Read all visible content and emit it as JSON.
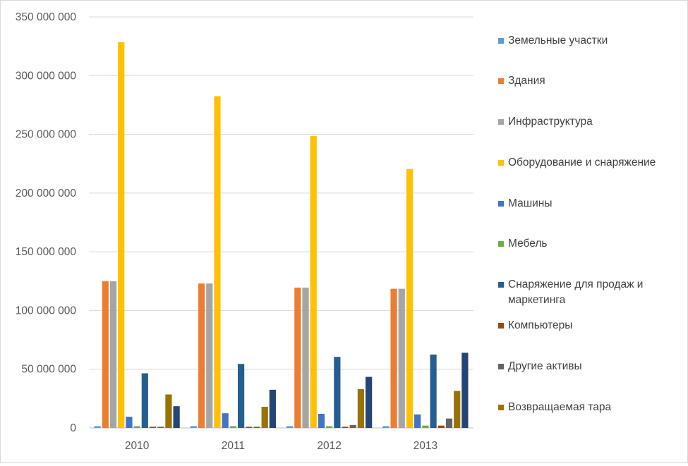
{
  "chart_data": {
    "type": "bar",
    "categories": [
      "2010",
      "2011",
      "2012",
      "2013"
    ],
    "ylim": [
      0,
      350000000
    ],
    "yticks": [
      0,
      50000000,
      100000000,
      150000000,
      200000000,
      250000000,
      300000000,
      350000000
    ],
    "ytick_labels": [
      "0",
      "50 000 000",
      "100 000 000",
      "150 000 000",
      "200 000 000",
      "250 000 000",
      "300 000 000",
      "350 000 000"
    ],
    "grid": true,
    "legend_position": "right",
    "series": [
      {
        "name": "Земельные участки",
        "color": "#5b9bd5",
        "values": [
          1500000,
          1500000,
          1500000,
          1500000
        ]
      },
      {
        "name": "Здания",
        "color": "#ed7d31",
        "values": [
          125000000,
          123000000,
          119500000,
          118500000
        ]
      },
      {
        "name": "Инфраструктура",
        "color": "#a5a5a5",
        "values": [
          125000000,
          123000000,
          119500000,
          118500000
        ]
      },
      {
        "name": "Оборудование и снаряжение",
        "color": "#ffc000",
        "values": [
          328500000,
          282500000,
          248500000,
          220500000
        ]
      },
      {
        "name": "Машины",
        "color": "#4472c4",
        "values": [
          9500000,
          12500000,
          12000000,
          11500000
        ]
      },
      {
        "name": "Мебель",
        "color": "#70ad47",
        "values": [
          1500000,
          1500000,
          1500000,
          2000000
        ]
      },
      {
        "name": "Снаряжение для продаж и маркетинга",
        "color": "#255e91",
        "values": [
          46500000,
          54500000,
          60500000,
          62500000
        ]
      },
      {
        "name": "Компьютеры",
        "color": "#9e480e",
        "values": [
          1000000,
          1000000,
          1000000,
          2000000
        ]
      },
      {
        "name": "Другие активы",
        "color": "#636363",
        "values": [
          1000000,
          1000000,
          2500000,
          8000000
        ]
      },
      {
        "name": "Возвращаемая тара",
        "color": "#997300",
        "values": [
          28500000,
          18000000,
          33000000,
          31500000
        ]
      },
      {
        "name": "",
        "color": "#264478",
        "values": [
          18500000,
          32500000,
          43500000,
          64000000
        ]
      }
    ]
  }
}
